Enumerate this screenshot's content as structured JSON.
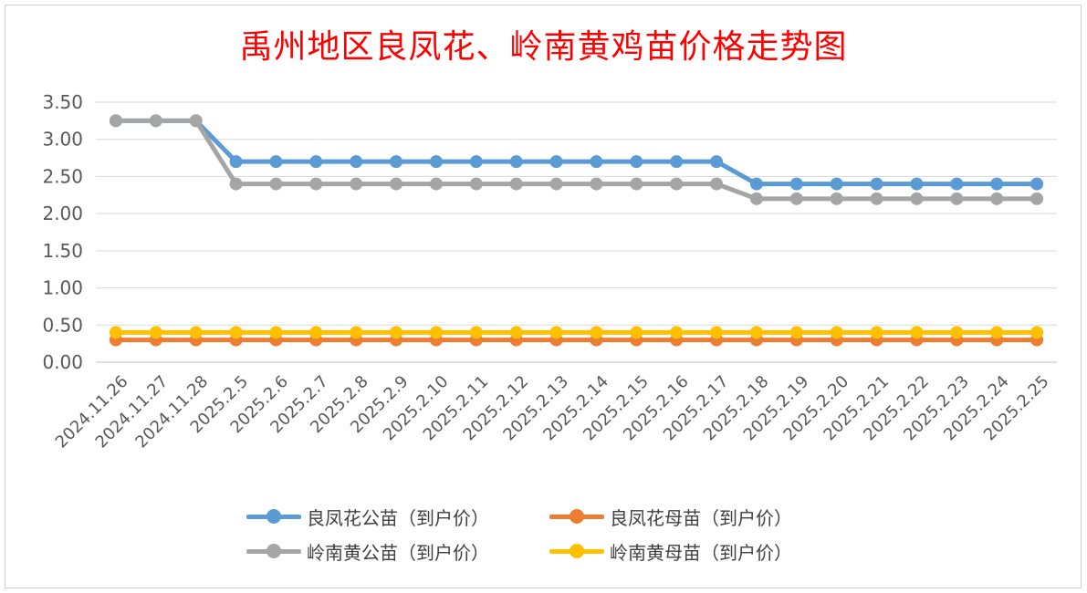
{
  "chart_data": {
    "type": "line",
    "title": "禹州地区良凤花、岭南黄鸡苗价格走势图",
    "xlabel": "",
    "ylabel": "",
    "ylim": [
      0,
      3.5
    ],
    "yticks": [
      "0.00",
      "0.50",
      "1.00",
      "1.50",
      "2.00",
      "2.50",
      "3.00",
      "3.50"
    ],
    "grid": true,
    "legend_position": "bottom",
    "categories": [
      "2024.11.26",
      "2024.11.27",
      "2024.11.28",
      "2025.2.5",
      "2025.2.6",
      "2025.2.7",
      "2025.2.8",
      "2025.2.9",
      "2025.2.10",
      "2025.2.11",
      "2025.2.12",
      "2025.2.13",
      "2025.2.14",
      "2025.2.15",
      "2025.2.16",
      "2025.2.17",
      "2025.2.18",
      "2025.2.19",
      "2025.2.20",
      "2025.2.21",
      "2025.2.22",
      "2025.2.23",
      "2025.2.24",
      "2025.2.25"
    ],
    "series": [
      {
        "name": "良凤花公苗（到户价）",
        "color": "#5b9bd5",
        "values": [
          3.25,
          3.25,
          3.25,
          2.7,
          2.7,
          2.7,
          2.7,
          2.7,
          2.7,
          2.7,
          2.7,
          2.7,
          2.7,
          2.7,
          2.7,
          2.7,
          2.4,
          2.4,
          2.4,
          2.4,
          2.4,
          2.4,
          2.4,
          2.4
        ]
      },
      {
        "name": "良凤花母苗（到户价）",
        "color": "#ed7d31",
        "values": [
          0.3,
          0.3,
          0.3,
          0.3,
          0.3,
          0.3,
          0.3,
          0.3,
          0.3,
          0.3,
          0.3,
          0.3,
          0.3,
          0.3,
          0.3,
          0.3,
          0.3,
          0.3,
          0.3,
          0.3,
          0.3,
          0.3,
          0.3,
          0.3
        ]
      },
      {
        "name": "岭南黄公苗（到户价）",
        "color": "#a5a5a5",
        "values": [
          3.25,
          3.25,
          3.25,
          2.4,
          2.4,
          2.4,
          2.4,
          2.4,
          2.4,
          2.4,
          2.4,
          2.4,
          2.4,
          2.4,
          2.4,
          2.4,
          2.2,
          2.2,
          2.2,
          2.2,
          2.2,
          2.2,
          2.2,
          2.2
        ]
      },
      {
        "name": "岭南黄母苗（到户价）",
        "color": "#ffc000",
        "values": [
          0.4,
          0.4,
          0.4,
          0.4,
          0.4,
          0.4,
          0.4,
          0.4,
          0.4,
          0.4,
          0.4,
          0.4,
          0.4,
          0.4,
          0.4,
          0.4,
          0.4,
          0.4,
          0.4,
          0.4,
          0.4,
          0.4,
          0.4,
          0.4
        ]
      }
    ]
  }
}
